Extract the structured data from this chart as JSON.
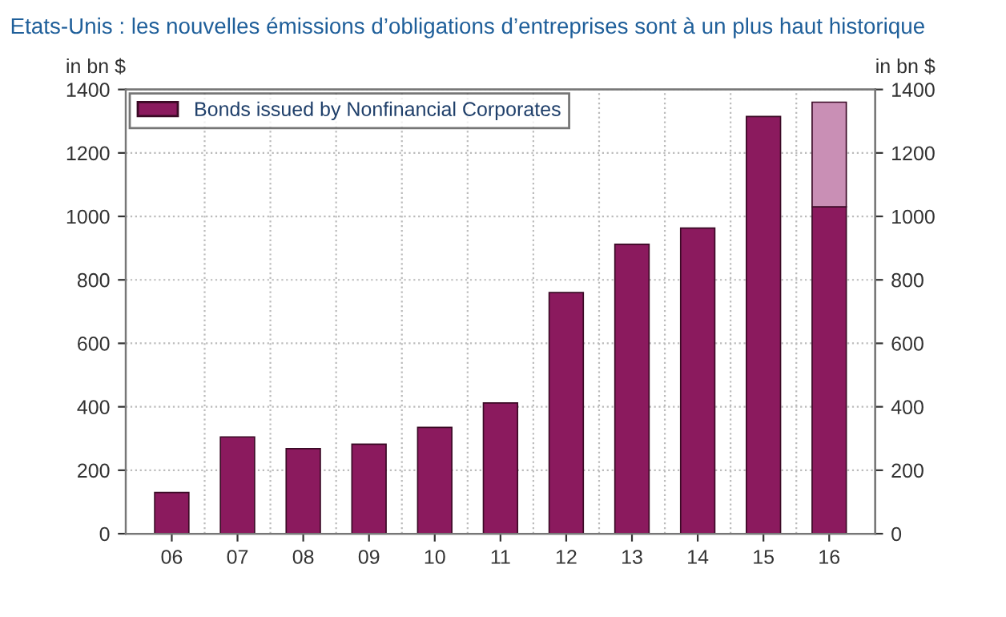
{
  "chart_data": {
    "type": "bar",
    "title": "Etats-Unis : les nouvelles émissions d’obligations d’entreprises sont à un plus haut historique",
    "ylabel": "in bn $",
    "y2label": "in bn $",
    "categories": [
      "06",
      "07",
      "08",
      "09",
      "10",
      "11",
      "12",
      "13",
      "14",
      "15",
      "16"
    ],
    "series": [
      {
        "name": "Bonds issued by Nonfinancial Corporates",
        "color": "#8b1a5e",
        "values": [
          130,
          305,
          268,
          282,
          335,
          412,
          760,
          912,
          963,
          1315,
          1030
        ]
      },
      {
        "color": "#c98fb5",
        "values": [
          null,
          null,
          null,
          null,
          null,
          null,
          null,
          null,
          null,
          null,
          330
        ]
      }
    ],
    "stacked": true,
    "ylim": [
      0,
      1400
    ],
    "yticks": [
      0,
      200,
      400,
      600,
      800,
      1000,
      1200,
      1400
    ],
    "y2lim": [
      0,
      1400
    ],
    "y2ticks": [
      0,
      200,
      400,
      600,
      800,
      1000,
      1200,
      1400
    ],
    "grid": true,
    "legend": "top left"
  }
}
